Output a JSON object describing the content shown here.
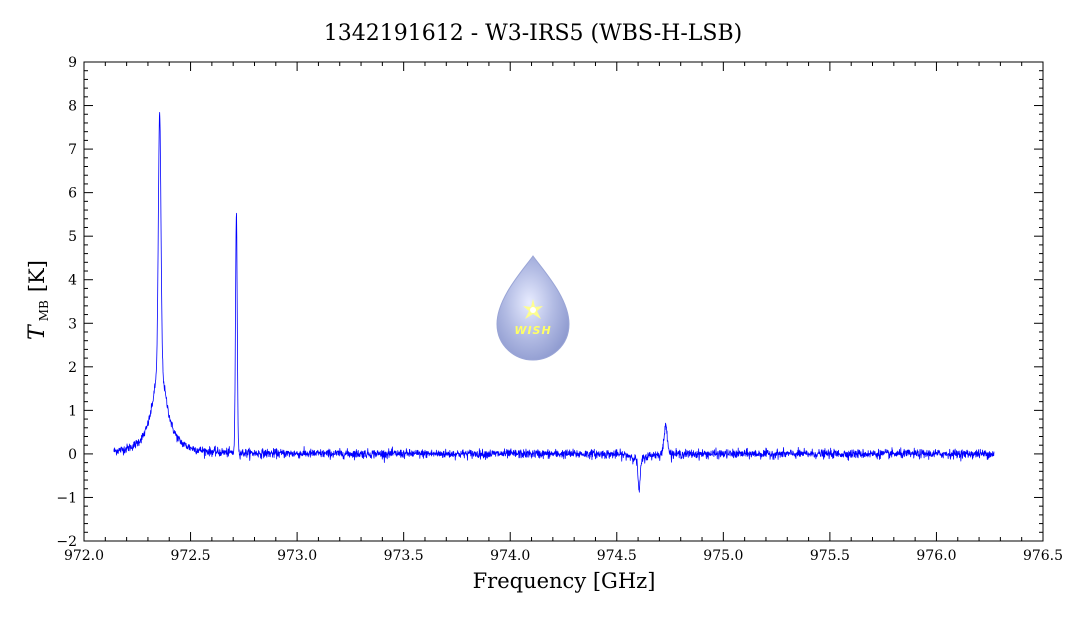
{
  "chart_data": {
    "type": "line",
    "title": "1342191612 - W3-IRS5 (WBS-H-LSB)",
    "xlabel": "Frequency [GHz]",
    "ylabel_main": "T",
    "ylabel_sub": "MB",
    "ylabel_unit": "[K]",
    "xlim": [
      972.0,
      976.5
    ],
    "ylim": [
      -2,
      9
    ],
    "x_ticks": [
      "972.0",
      "972.5",
      "973.0",
      "973.5",
      "974.0",
      "974.5",
      "975.0",
      "975.5",
      "976.0",
      "976.5"
    ],
    "y_ticks": [
      "−2",
      "−1",
      "0",
      "1",
      "2",
      "3",
      "4",
      "5",
      "6",
      "7",
      "8",
      "9"
    ],
    "grid": false,
    "series": [
      {
        "color": "#0000ff",
        "x_range": [
          972.14,
          976.27
        ],
        "baseline": 0.0,
        "noise": 0.05,
        "features": [
          {
            "center": 972.355,
            "peak": 7.8,
            "width_core": 0.006,
            "wing_peak": 2.0,
            "wing_width": 0.04
          },
          {
            "center": 972.715,
            "peak": 5.5,
            "width_core": 0.004,
            "wing_peak": 0.0,
            "wing_width": 0.0
          },
          {
            "center": 974.605,
            "peak": -0.85,
            "width_core": 0.005,
            "wing_peak": -0.15,
            "wing_width": 0.03
          },
          {
            "center": 974.73,
            "peak": 0.65,
            "width_core": 0.008,
            "wing_peak": 0.0,
            "wing_width": 0.0
          }
        ]
      }
    ]
  },
  "logo": {
    "text": "WISH",
    "color_drop": "#a9b4e0",
    "color_star": "#ffff66"
  }
}
